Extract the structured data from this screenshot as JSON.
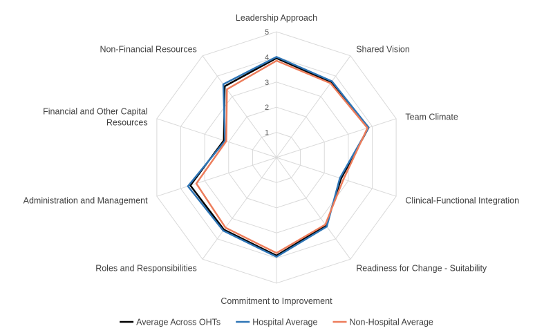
{
  "chart_data": {
    "type": "radar",
    "title": "",
    "categories": [
      "Leadership Approach",
      "Shared Vision",
      "Team Climate",
      "Clinical-Functional Integration",
      "Readiness for Change - Suitability",
      "Commitment to Improvement",
      "Roles and Responsibilities",
      "Administration and Management",
      "Financial and Other Capital Resources",
      "Non-Financial Resources"
    ],
    "category_display": [
      [
        "Leadership Approach"
      ],
      [
        "Shared Vision"
      ],
      [
        "Team Climate"
      ],
      [
        "Clinical-Functional Integration"
      ],
      [
        "Readiness for Change - Suitability"
      ],
      [
        "Commitment to Improvement"
      ],
      [
        "Roles and Responsibilities"
      ],
      [
        "Administration and Management"
      ],
      [
        "Financial and Other Capital",
        "Resources"
      ],
      [
        "Non-Financial Resources"
      ]
    ],
    "rlim": [
      0,
      5
    ],
    "ticks": [
      1,
      2,
      3,
      4,
      5
    ],
    "tick_labels": [
      "1",
      "2",
      "3",
      "4",
      "5"
    ],
    "grid": true,
    "legend_position": "bottom",
    "series": [
      {
        "name": "Average Across OHTs",
        "color": "#000000",
        "values": [
          3.95,
          3.7,
          3.85,
          2.7,
          3.35,
          3.9,
          3.55,
          3.6,
          2.2,
          3.5
        ]
      },
      {
        "name": "Hospital Average",
        "color": "#2e75b6",
        "values": [
          4.0,
          3.75,
          3.85,
          2.65,
          3.4,
          3.95,
          3.6,
          3.7,
          2.15,
          3.6
        ]
      },
      {
        "name": "Non-Hospital Average",
        "color": "#ed7d5b",
        "values": [
          3.85,
          3.65,
          3.8,
          2.8,
          3.3,
          3.8,
          3.45,
          3.35,
          2.1,
          3.35
        ]
      }
    ]
  }
}
